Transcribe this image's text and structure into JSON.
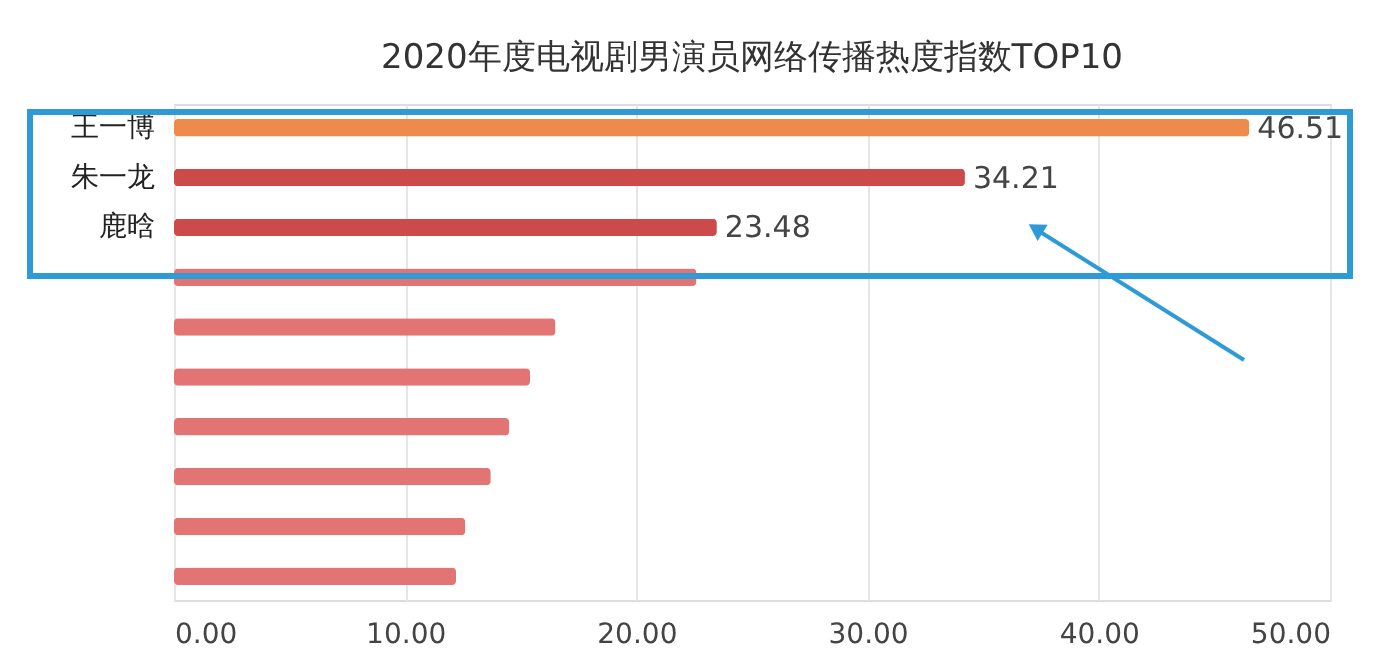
{
  "chart_data": {
    "type": "bar",
    "orientation": "horizontal",
    "title": "2020年度电视剧男演员网络传播热度指数TOP10",
    "categories": [
      "王一博",
      "朱一龙",
      "鹿晗",
      null,
      null,
      null,
      null,
      null,
      null,
      null
    ],
    "values": [
      46.51,
      34.21,
      23.48,
      22.6,
      16.5,
      15.4,
      14.5,
      13.7,
      12.6,
      12.2
    ],
    "colors": [
      "#ee8a4c",
      "#cc4a4a",
      "#cc4a4a",
      "#e27474",
      "#e27474",
      "#e27474",
      "#e27474",
      "#e27474",
      "#e27474",
      "#e27474"
    ],
    "value_labels": [
      "46.51",
      "34.21",
      "23.48",
      null,
      null,
      null,
      null,
      null,
      null,
      null
    ],
    "xlim": [
      0,
      50
    ],
    "xticks": [
      {
        "value": 0,
        "label": "0.00"
      },
      {
        "value": 10,
        "label": "10.00"
      },
      {
        "value": 20,
        "label": "20.00"
      },
      {
        "value": 30,
        "label": "30.00"
      },
      {
        "value": 40,
        "label": "40.00"
      },
      {
        "value": 50,
        "label": "50.00"
      }
    ],
    "grid": "x"
  }
}
